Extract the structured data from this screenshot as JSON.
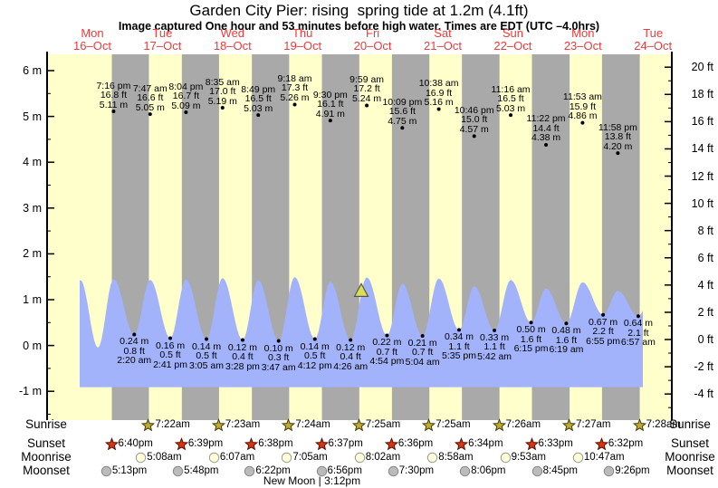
{
  "title": "Garden City Pier: rising  spring tide at 1.2m (4.1ft)",
  "subtitle": "Image captured One hour and 53 minutes before high water. Times are EDT (UTC –4.0hrs)",
  "colors": {
    "day_band": "#ffffcc",
    "night_band": "#a9a9a9",
    "tide_fill": "#a2b2fb",
    "day_label": "#ee3a3a",
    "marker_fill": "#dede52",
    "marker_stroke": "#555555",
    "sunrise_star_fill": "#c0aa33",
    "sunrise_star_stroke": "#454000",
    "sunset_star_fill": "#dd3311",
    "sunset_star_stroke": "#551100",
    "moonrise_fill": "#ffffd8",
    "moonrise_stroke": "#999999",
    "moonset_fill": "#bbbbbb",
    "moonset_stroke": "#888888",
    "axis": "#000000"
  },
  "chart_data": {
    "type": "area",
    "title": "Tide height curve with high/low tide annotations",
    "days": [
      {
        "name": "Mon",
        "date": "16–Oct"
      },
      {
        "name": "Tue",
        "date": "17–Oct"
      },
      {
        "name": "Wed",
        "date": "18–Oct"
      },
      {
        "name": "Thu",
        "date": "19–Oct"
      },
      {
        "name": "Fri",
        "date": "20–Oct"
      },
      {
        "name": "Sat",
        "date": "21–Oct"
      },
      {
        "name": "Sun",
        "date": "22–Oct"
      },
      {
        "name": "Mon",
        "date": "23–Oct"
      },
      {
        "name": "Tue",
        "date": "24–Oct"
      }
    ],
    "y_axis_left": {
      "unit": "m",
      "ticks": [
        6,
        5,
        4,
        3,
        2,
        1,
        0,
        -1
      ]
    },
    "y_axis_right": {
      "unit": "ft",
      "ticks": [
        20,
        18,
        16,
        14,
        12,
        10,
        8,
        6,
        4,
        2,
        0,
        -2,
        -4
      ]
    },
    "high_tides": [
      {
        "day": 0,
        "time": "7:16 pm",
        "ft": 16.8,
        "m": 5.11
      },
      {
        "day": 1,
        "time": "7:47 am",
        "ft": 16.6,
        "m": 5.05
      },
      {
        "day": 1,
        "time": "8:04 pm",
        "ft": 16.7,
        "m": 5.09
      },
      {
        "day": 2,
        "time": "8:35 am",
        "ft": 17.0,
        "m": 5.19
      },
      {
        "day": 2,
        "time": "8:49 pm",
        "ft": 16.5,
        "m": 5.03
      },
      {
        "day": 3,
        "time": "9:18 am",
        "ft": 17.3,
        "m": 5.26
      },
      {
        "day": 3,
        "time": "9:30 pm",
        "ft": 16.1,
        "m": 4.91
      },
      {
        "day": 4,
        "time": "9:59 am",
        "ft": 17.2,
        "m": 5.24
      },
      {
        "day": 4,
        "time": "10:09 pm",
        "ft": 15.6,
        "m": 4.75
      },
      {
        "day": 5,
        "time": "10:38 am",
        "ft": 16.9,
        "m": 5.16
      },
      {
        "day": 5,
        "time": "10:46 pm",
        "ft": 15.0,
        "m": 4.57
      },
      {
        "day": 6,
        "time": "11:16 am",
        "ft": 16.5,
        "m": 5.03
      },
      {
        "day": 6,
        "time": "11:22 pm",
        "ft": 14.4,
        "m": 4.38
      },
      {
        "day": 7,
        "time": "11:53 am",
        "ft": 15.9,
        "m": 4.86
      },
      {
        "day": 7,
        "time": "11:58 pm",
        "ft": 13.8,
        "m": 4.2
      }
    ],
    "low_tides": [
      {
        "day": 1,
        "time": "2:20 am",
        "ft": 0.8,
        "m": 0.24
      },
      {
        "day": 1,
        "time": "2:41 pm",
        "ft": 0.5,
        "m": 0.16
      },
      {
        "day": 2,
        "time": "3:05 am",
        "ft": 0.5,
        "m": 0.14
      },
      {
        "day": 2,
        "time": "3:28 pm",
        "ft": 0.4,
        "m": 0.12
      },
      {
        "day": 3,
        "time": "3:47 am",
        "ft": 0.3,
        "m": 0.1
      },
      {
        "day": 3,
        "time": "4:12 pm",
        "ft": 0.5,
        "m": 0.14
      },
      {
        "day": 4,
        "time": "4:26 am",
        "ft": 0.4,
        "m": 0.12
      },
      {
        "day": 4,
        "time": "4:54 pm",
        "ft": 0.7,
        "m": 0.22
      },
      {
        "day": 5,
        "time": "5:04 am",
        "ft": 0.7,
        "m": 0.21
      },
      {
        "day": 5,
        "time": "5:35 pm",
        "ft": 1.1,
        "m": 0.34
      },
      {
        "day": 6,
        "time": "5:42 am",
        "ft": 1.1,
        "m": 0.33
      },
      {
        "day": 6,
        "time": "6:15 pm",
        "ft": 1.6,
        "m": 0.5
      },
      {
        "day": 7,
        "time": "6:19 am",
        "ft": 1.6,
        "m": 0.48
      },
      {
        "day": 7,
        "time": "6:55 pm",
        "ft": 2.2,
        "m": 0.67
      },
      {
        "day": 8,
        "time": "6:57 am",
        "ft": 2.1,
        "m": 0.64
      }
    ],
    "current_marker": {
      "value_m": 1.2,
      "day": 4,
      "approx_time": "8:06 am"
    },
    "curve_shape": {
      "peak_scale": 0.284,
      "lead": [
        {
          "day": 0,
          "time": "3:20 am",
          "m": 0.0
        },
        {
          "day": 0,
          "time": "7:55 am",
          "m": 1.43
        },
        {
          "day": 0,
          "time": "1:55 pm",
          "m": -0.05
        }
      ],
      "tail": [
        {
          "day": 8,
          "time": "12:40 pm",
          "m": 1.35
        }
      ],
      "base_m": -0.91
    }
  },
  "astro": {
    "rows": [
      {
        "id": "sunrise",
        "label": "Sunrise",
        "icon": "sunrise-star-icon",
        "items": [
          {
            "day": 1,
            "time": "7:22am"
          },
          {
            "day": 2,
            "time": "7:23am"
          },
          {
            "day": 3,
            "time": "7:24am"
          },
          {
            "day": 4,
            "time": "7:25am"
          },
          {
            "day": 5,
            "time": "7:25am"
          },
          {
            "day": 6,
            "time": "7:26am"
          },
          {
            "day": 7,
            "time": "7:27am"
          },
          {
            "day": 8,
            "time": "7:28am"
          }
        ]
      },
      {
        "id": "sunset",
        "label": "Sunset",
        "icon": "sunset-star-icon",
        "items": [
          {
            "day": 0,
            "time": "6:40pm"
          },
          {
            "day": 1,
            "time": "6:39pm"
          },
          {
            "day": 2,
            "time": "6:38pm"
          },
          {
            "day": 3,
            "time": "6:37pm"
          },
          {
            "day": 4,
            "time": "6:36pm"
          },
          {
            "day": 5,
            "time": "6:34pm"
          },
          {
            "day": 6,
            "time": "6:33pm"
          },
          {
            "day": 7,
            "time": "6:32pm"
          }
        ]
      },
      {
        "id": "moonrise",
        "label": "Moonrise",
        "icon": "moonrise-circle-icon",
        "items": [
          {
            "day": 1,
            "time": "5:08am"
          },
          {
            "day": 2,
            "time": "6:07am"
          },
          {
            "day": 3,
            "time": "7:05am"
          },
          {
            "day": 4,
            "time": "8:02am"
          },
          {
            "day": 5,
            "time": "8:58am"
          },
          {
            "day": 6,
            "time": "9:53am"
          },
          {
            "day": 7,
            "time": "10:47am"
          }
        ]
      },
      {
        "id": "moonset",
        "label": "Moonset",
        "icon": "moonset-circle-icon",
        "items": [
          {
            "day": 0,
            "time": "5:13pm"
          },
          {
            "day": 1,
            "time": "5:48pm"
          },
          {
            "day": 2,
            "time": "6:22pm"
          },
          {
            "day": 3,
            "time": "6:56pm"
          },
          {
            "day": 4,
            "time": "7:30pm"
          },
          {
            "day": 5,
            "time": "8:06pm"
          },
          {
            "day": 6,
            "time": "8:45pm"
          },
          {
            "day": 7,
            "time": "9:26pm"
          }
        ]
      }
    ],
    "new_moon": {
      "label": "New Moon",
      "separator": "|",
      "time": "3:12pm",
      "day": 3
    }
  }
}
